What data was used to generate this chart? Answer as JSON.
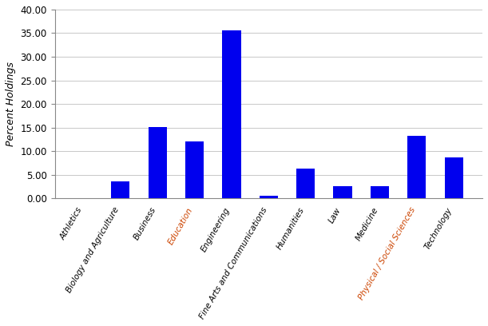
{
  "categories": [
    "Athletics",
    "Biology and Agriculture",
    "Business",
    "Education",
    "Engineering",
    "Fine Arts and Communications",
    "Humanities",
    "Law",
    "Medicine",
    "Physical / Social Sciences",
    "Technology"
  ],
  "values": [
    0.1,
    3.6,
    15.1,
    12.0,
    35.6,
    0.5,
    6.3,
    2.5,
    2.5,
    13.3,
    8.7
  ],
  "bar_color": "#0000ee",
  "ylabel": "Percent Holdings",
  "ylim": [
    0,
    40.0
  ],
  "yticks": [
    0.0,
    5.0,
    10.0,
    15.0,
    20.0,
    25.0,
    30.0,
    35.0,
    40.0
  ],
  "tick_label_colors": [
    "#000000",
    "#000000",
    "#000000",
    "#cc4400",
    "#000000",
    "#000000",
    "#000000",
    "#000000",
    "#000000",
    "#cc4400",
    "#000000"
  ],
  "background_color": "#ffffff",
  "grid_color": "#c8c8c8",
  "ylabel_color": "#000000",
  "ylabel_fontsize": 9,
  "xtick_fontsize": 7.5,
  "ytick_fontsize": 8.5,
  "bar_width": 0.5,
  "xtick_rotation": 60
}
